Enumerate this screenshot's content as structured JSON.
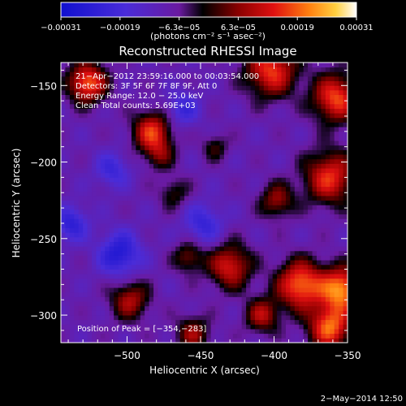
{
  "chart_data": {
    "type": "heatmap",
    "title": "Reconstructed RHESSI Image",
    "xlabel": "Heliocentric X (arcsec)",
    "ylabel": "Heliocentric Y (arcsec)",
    "xlim": [
      -545,
      -350
    ],
    "ylim": [
      -318,
      -135
    ],
    "x_ticks": [
      -500,
      -450,
      -400,
      -350
    ],
    "x_tick_labels": [
      "−500",
      "−450",
      "−400",
      "−350"
    ],
    "y_ticks": [
      -150,
      -200,
      -250,
      -300
    ],
    "y_tick_labels": [
      "−150",
      "−200",
      "−250",
      "−300"
    ],
    "colorbar": {
      "range": [
        -0.00031,
        0.00031
      ],
      "tick_labels": [
        "−0.00031",
        "−0.00019",
        "−6.3e−05",
        "6.3e−05",
        "0.00019",
        "0.00031"
      ],
      "units_label": "(photons cm⁻² s⁻¹ asec⁻²)"
    },
    "annotations": [
      "21−Apr−2012 23:59:16.000 to 00:03:54.000",
      "Detectors: 3F 5F 6F 7F 8F 9F, Att 0",
      "Energy Range: 12.0 − 25.0 keV",
      "Clean    Total counts: 5.69E+03"
    ],
    "peak_label": "Position of Peak = [−354,−283]",
    "peak": {
      "x": -354,
      "y": -283
    },
    "sources": [
      {
        "x": -527,
        "y": -148,
        "sigma": 9,
        "amp": 0.00028
      },
      {
        "x": -483,
        "y": -180,
        "sigma": 9,
        "amp": 0.00024
      },
      {
        "x": -478,
        "y": -195,
        "sigma": 7,
        "amp": 0.00012
      },
      {
        "x": -468,
        "y": -220,
        "sigma": 7,
        "amp": 0.0001
      },
      {
        "x": -402,
        "y": -140,
        "sigma": 12,
        "amp": 0.00025
      },
      {
        "x": -358,
        "y": -158,
        "sigma": 11,
        "amp": 0.00026
      },
      {
        "x": -362,
        "y": -210,
        "sigma": 12,
        "amp": 0.00024
      },
      {
        "x": -398,
        "y": -225,
        "sigma": 8,
        "amp": 0.00016
      },
      {
        "x": -382,
        "y": -280,
        "sigma": 11,
        "amp": 0.00029
      },
      {
        "x": -354,
        "y": -283,
        "sigma": 10,
        "amp": 0.00031
      },
      {
        "x": -362,
        "y": -308,
        "sigma": 10,
        "amp": 0.00028
      },
      {
        "x": -430,
        "y": -268,
        "sigma": 10,
        "amp": 0.00022
      },
      {
        "x": -458,
        "y": -262,
        "sigma": 7,
        "amp": 0.00014
      },
      {
        "x": -408,
        "y": -300,
        "sigma": 8,
        "amp": 0.00018
      },
      {
        "x": -498,
        "y": -290,
        "sigma": 9,
        "amp": 0.00018
      },
      {
        "x": -455,
        "y": -312,
        "sigma": 8,
        "amp": 0.00016
      },
      {
        "x": -440,
        "y": -190,
        "sigma": 6,
        "amp": 0.0001
      },
      {
        "x": -538,
        "y": -240,
        "sigma": 8,
        "amp": -0.00015
      },
      {
        "x": -505,
        "y": -260,
        "sigma": 10,
        "amp": -0.00018
      },
      {
        "x": -448,
        "y": -240,
        "sigma": 9,
        "amp": -0.00013
      },
      {
        "x": -462,
        "y": -165,
        "sigma": 8,
        "amp": -0.00012
      },
      {
        "x": -510,
        "y": -205,
        "sigma": 8,
        "amp": -0.00012
      }
    ]
  },
  "footer": {
    "timestamp": "2−May−2014 12:50"
  }
}
